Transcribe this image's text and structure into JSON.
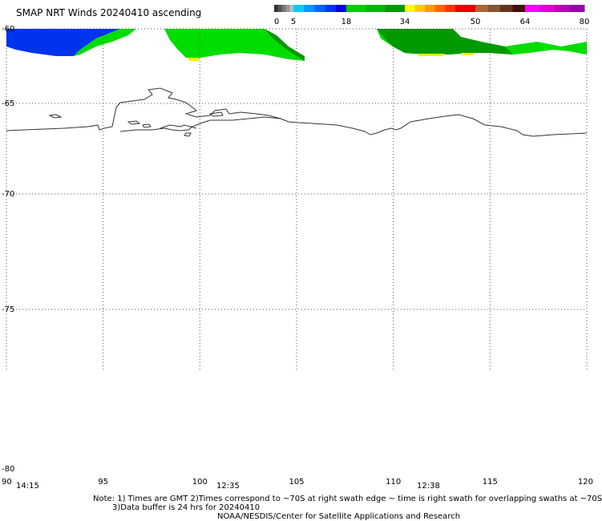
{
  "title": "SMAP NRT Winds 20240410 ascending",
  "colorbar": {
    "labels": [
      "0",
      "5",
      "18",
      "34",
      "50",
      "64",
      "80"
    ],
    "segments": [
      {
        "from": 0,
        "to": 5,
        "colors": [
          "#333333",
          "#555555",
          "#777777",
          "#999999",
          "#bbbbbb"
        ]
      },
      {
        "from": 5,
        "to": 18,
        "colors": [
          "#00ccff",
          "#0099ff",
          "#0066ff",
          "#0033ff",
          "#0000ee"
        ]
      },
      {
        "from": 18,
        "to": 34,
        "colors": [
          "#00cc00",
          "#00b400",
          "#009900"
        ]
      },
      {
        "from": 34,
        "to": 50,
        "colors": [
          "#ffff00",
          "#ffcc00",
          "#ff9900",
          "#ff6600",
          "#ff3300",
          "#ee0000",
          "#dd0000"
        ]
      },
      {
        "from": 50,
        "to": 64,
        "colors": [
          "#aa6633",
          "#885533",
          "#663322",
          "#441100"
        ]
      },
      {
        "from": 64,
        "to": 80,
        "colors": [
          "#ff00ff",
          "#dd00dd",
          "#bb00bb",
          "#9900aa"
        ]
      }
    ]
  },
  "map": {
    "lon_range": [
      90,
      120
    ],
    "lat_range": [
      -60,
      -80
    ],
    "lon_ticks": [
      "90",
      "95",
      "100",
      "105",
      "110",
      "115",
      "120"
    ],
    "lat_ticks": [
      "-60",
      "-65",
      "-70",
      "-75",
      "-80"
    ],
    "times": [
      "14:15",
      "12:35",
      "12:38"
    ]
  },
  "notes": [
    "Note: 1) Times are GMT 2)Times correspond to ~70S at right swath edge ~ time is right swath for overlapping swaths at ~70S",
    "3)Data buffer is 24 hrs for 20240410",
    "NOAA/NESDIS/Center for Satellite Applications and Research"
  ]
}
